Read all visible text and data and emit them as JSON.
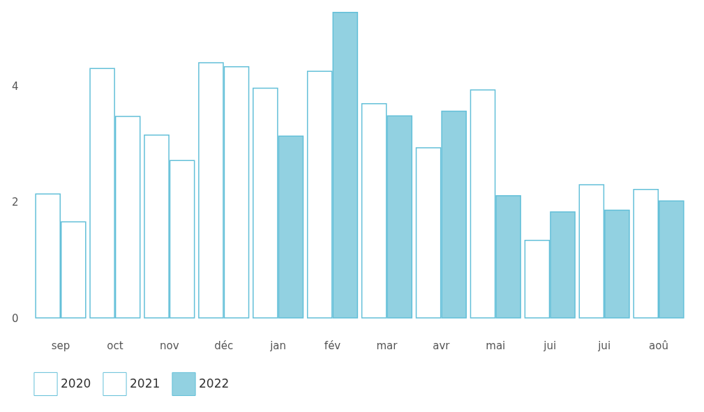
{
  "chart_data": {
    "type": "bar",
    "categories": [
      "sep",
      "oct",
      "nov",
      "déc",
      "jan",
      "fév",
      "mar",
      "avr",
      "mai",
      "jui",
      "jui",
      "aoû"
    ],
    "series": [
      {
        "name": "2020",
        "color": "#ffffff",
        "values": [
          2.14,
          4.31,
          3.16,
          4.41,
          null,
          null,
          null,
          null,
          null,
          null,
          null,
          null
        ]
      },
      {
        "name": "2021",
        "color": "#ffffff",
        "values": [
          1.66,
          3.48,
          2.72,
          4.34,
          3.97,
          4.26,
          3.7,
          2.94,
          3.94,
          1.34,
          2.3,
          2.22
        ]
      },
      {
        "name": "2022",
        "color": "#92d1e1",
        "values": [
          null,
          null,
          null,
          null,
          3.14,
          5.28,
          3.49,
          3.57,
          2.11,
          1.83,
          1.86,
          2.02
        ]
      }
    ],
    "ylim": [
      0,
      5.3
    ],
    "yticks": [
      0,
      2,
      4
    ],
    "grid": false,
    "legend": "bottom"
  }
}
